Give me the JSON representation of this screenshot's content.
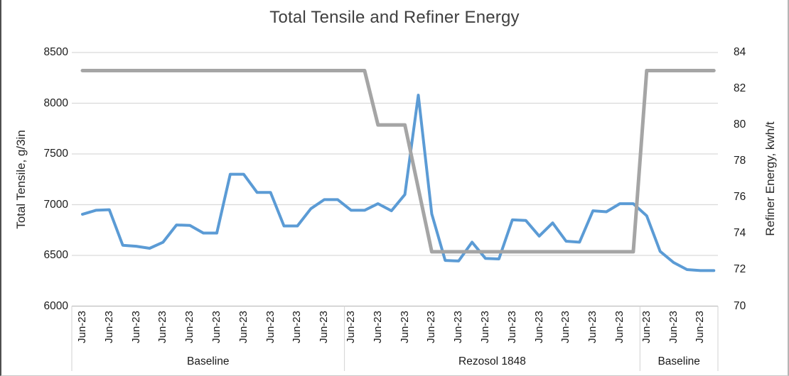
{
  "chart": {
    "title": "Total Tensile and Refiner Energy",
    "left_axis": {
      "title": "Total Tensile, g/3in",
      "ticks": [
        8500,
        8000,
        7500,
        7000,
        6500,
        6000
      ]
    },
    "right_axis": {
      "title": "Refiner Energy, kwh/t",
      "ticks": [
        84,
        82,
        80,
        78,
        76,
        74,
        72,
        70
      ]
    },
    "colors": {
      "tensile_line": "#5B9BD5",
      "energy_line": "#A5A5A5",
      "gridline": "#D9D9D9",
      "axis_line": "#BFBFBF",
      "title_text": "#404040",
      "tick_text": "#1a1a1a"
    }
  },
  "chart_data": {
    "type": "line",
    "title": "Total Tensile and Refiner Energy",
    "grid": true,
    "legend": "none",
    "x_tick_label_repeated": "Jun-23",
    "x_tick_label_count": 24,
    "sections": [
      {
        "label": "Baseline",
        "points": 20
      },
      {
        "label": "Rezosol 1848",
        "points": 22
      },
      {
        "label": "Baseline",
        "points": 6
      }
    ],
    "left_ylim": [
      6000,
      8500
    ],
    "right_ylim": [
      70,
      84
    ],
    "series": [
      {
        "name": "Total Tensile, g/3in",
        "axis": "left",
        "color": "#5B9BD5",
        "values": [
          6905,
          6945,
          6950,
          6600,
          6590,
          6570,
          6630,
          6800,
          6795,
          6720,
          6720,
          7300,
          7300,
          7120,
          7120,
          6790,
          6790,
          6960,
          7050,
          7050,
          6945,
          6945,
          7010,
          6940,
          7100,
          8080,
          6910,
          6450,
          6445,
          6630,
          6470,
          6465,
          6850,
          6845,
          6690,
          6820,
          6640,
          6630,
          6940,
          6930,
          7010,
          7010,
          6890,
          6540,
          6430,
          6360,
          6350,
          6350
        ]
      },
      {
        "name": "Refiner Energy, kwh/t",
        "axis": "right",
        "color": "#A5A5A5",
        "values": [
          83,
          83,
          83,
          83,
          83,
          83,
          83,
          83,
          83,
          83,
          83,
          83,
          83,
          83,
          83,
          83,
          83,
          83,
          83,
          83,
          83,
          83,
          80,
          80,
          80,
          76.5,
          73,
          73,
          73,
          73,
          73,
          73,
          73,
          73,
          73,
          73,
          73,
          73,
          73,
          73,
          73,
          73,
          83,
          83,
          83,
          83,
          83,
          83
        ]
      }
    ]
  }
}
